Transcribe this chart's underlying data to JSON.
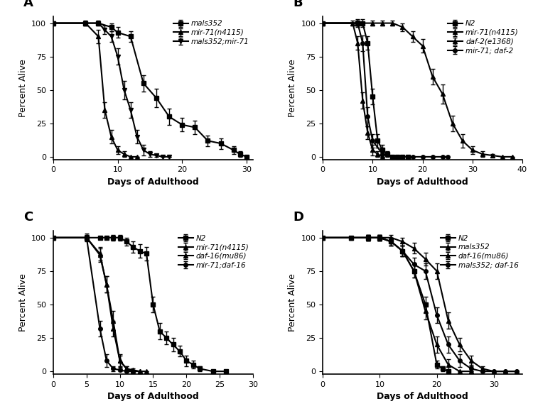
{
  "panel_A": {
    "label": "A",
    "xlim": [
      0,
      31
    ],
    "ylim": [
      -2,
      105
    ],
    "xticks": [
      0,
      10,
      20,
      30
    ],
    "yticks": [
      0,
      25,
      50,
      75,
      100
    ],
    "xlabel": "Days of Adulthood",
    "ylabel": "Percent Alive",
    "series": [
      {
        "label": "mals352",
        "marker": "s",
        "x": [
          0,
          5,
          7,
          9,
          10,
          12,
          14,
          16,
          18,
          20,
          22,
          24,
          26,
          28,
          29,
          30
        ],
        "y": [
          100,
          100,
          100,
          97,
          93,
          90,
          55,
          44,
          30,
          24,
          22,
          12,
          10,
          5,
          2,
          0
        ],
        "yerr": [
          0,
          1,
          1,
          3,
          4,
          4,
          6,
          7,
          6,
          5,
          5,
          4,
          4,
          3,
          2,
          0
        ]
      },
      {
        "label": "mir-71(n4115)",
        "marker": "^",
        "x": [
          0,
          5,
          7,
          8,
          9,
          10,
          11,
          12,
          13
        ],
        "y": [
          100,
          100,
          90,
          35,
          15,
          5,
          2,
          0,
          0
        ],
        "yerr": [
          0,
          2,
          5,
          6,
          5,
          3,
          2,
          0,
          0
        ]
      },
      {
        "label": "mals352;mir-71",
        "marker": "v",
        "x": [
          0,
          5,
          7,
          8,
          9,
          10,
          11,
          12,
          13,
          14,
          15,
          16,
          17,
          18
        ],
        "y": [
          100,
          100,
          100,
          95,
          90,
          75,
          50,
          35,
          15,
          5,
          2,
          1,
          0,
          0
        ],
        "yerr": [
          0,
          1,
          2,
          3,
          4,
          6,
          7,
          6,
          5,
          4,
          2,
          1,
          0,
          0
        ]
      }
    ]
  },
  "panel_B": {
    "label": "B",
    "xlim": [
      0,
      40
    ],
    "ylim": [
      -2,
      105
    ],
    "xticks": [
      0,
      10,
      20,
      30,
      40
    ],
    "yticks": [
      0,
      25,
      50,
      75,
      100
    ],
    "xlabel": "Days of Adulthood",
    "ylabel": "Percent Alive",
    "series": [
      {
        "label": "N2",
        "marker": "s",
        "x": [
          0,
          7,
          8,
          9,
          10,
          11,
          12,
          13,
          14,
          15,
          16,
          17
        ],
        "y": [
          100,
          100,
          100,
          85,
          45,
          12,
          5,
          2,
          0,
          0,
          0,
          0
        ],
        "yerr": [
          0,
          2,
          3,
          5,
          6,
          5,
          4,
          2,
          0,
          0,
          0,
          0
        ]
      },
      {
        "label": "mir-71(n4115)",
        "marker": "^",
        "x": [
          0,
          6,
          7,
          8,
          9,
          10,
          11,
          12
        ],
        "y": [
          100,
          100,
          85,
          42,
          18,
          5,
          2,
          0
        ],
        "yerr": [
          0,
          2,
          5,
          6,
          5,
          4,
          2,
          0
        ]
      },
      {
        "label": "daf-2(e1368)",
        "marker": "^",
        "x": [
          0,
          7,
          10,
          12,
          14,
          16,
          18,
          20,
          22,
          24,
          26,
          28,
          30,
          32,
          34,
          36,
          38
        ],
        "y": [
          100,
          100,
          100,
          100,
          100,
          97,
          90,
          83,
          60,
          47,
          25,
          12,
          5,
          2,
          1,
          0,
          0
        ],
        "yerr": [
          0,
          2,
          2,
          2,
          2,
          3,
          4,
          5,
          6,
          7,
          6,
          5,
          3,
          2,
          1,
          0,
          0
        ]
      },
      {
        "label": "mir-71; daf-2",
        "marker": "o",
        "x": [
          0,
          7,
          8,
          9,
          10,
          12,
          14,
          16,
          18,
          20,
          22,
          24,
          25
        ],
        "y": [
          100,
          100,
          85,
          30,
          12,
          2,
          0,
          0,
          0,
          0,
          0,
          0,
          0
        ],
        "yerr": [
          0,
          3,
          6,
          7,
          5,
          2,
          0,
          0,
          0,
          0,
          0,
          0,
          0
        ]
      }
    ]
  },
  "panel_C": {
    "label": "C",
    "xlim": [
      0,
      30
    ],
    "ylim": [
      -2,
      105
    ],
    "xticks": [
      0,
      5,
      10,
      15,
      20,
      25,
      30
    ],
    "yticks": [
      0,
      25,
      50,
      75,
      100
    ],
    "xlabel": "Days of Adulthood",
    "ylabel": "Percent Alive",
    "series": [
      {
        "label": "N2",
        "marker": "s",
        "x": [
          0,
          5,
          7,
          8,
          9,
          10,
          11,
          12,
          13,
          14,
          15,
          16,
          17,
          18,
          19,
          20,
          21,
          22,
          24,
          26
        ],
        "y": [
          100,
          100,
          100,
          100,
          100,
          100,
          97,
          93,
          90,
          88,
          50,
          30,
          25,
          20,
          15,
          8,
          5,
          2,
          0,
          0
        ],
        "yerr": [
          0,
          1,
          1,
          1,
          2,
          2,
          3,
          4,
          5,
          5,
          6,
          6,
          5,
          5,
          4,
          4,
          3,
          2,
          0,
          0
        ]
      },
      {
        "label": "mir-71(n4115)",
        "marker": "^",
        "x": [
          0,
          5,
          7,
          8,
          9,
          10,
          11,
          12,
          13
        ],
        "y": [
          100,
          100,
          88,
          65,
          32,
          8,
          2,
          0,
          0
        ],
        "yerr": [
          0,
          2,
          5,
          6,
          6,
          4,
          2,
          0,
          0
        ]
      },
      {
        "label": "daf-16(mu86)",
        "marker": "^",
        "x": [
          0,
          5,
          7,
          8,
          9,
          10,
          11,
          12,
          13,
          14
        ],
        "y": [
          100,
          100,
          87,
          65,
          38,
          8,
          2,
          1,
          0,
          0
        ],
        "yerr": [
          0,
          2,
          5,
          6,
          7,
          5,
          2,
          1,
          0,
          0
        ]
      },
      {
        "label": "mir-71;daf-16",
        "marker": "o",
        "x": [
          0,
          5,
          7,
          8,
          9,
          10,
          11,
          12
        ],
        "y": [
          100,
          100,
          32,
          8,
          2,
          1,
          0,
          0
        ],
        "yerr": [
          0,
          3,
          6,
          5,
          2,
          1,
          0,
          0
        ]
      }
    ]
  },
  "panel_D": {
    "label": "D",
    "xlim": [
      0,
      35
    ],
    "ylim": [
      -2,
      105
    ],
    "xticks": [
      0,
      10,
      20,
      30
    ],
    "yticks": [
      0,
      25,
      50,
      75,
      100
    ],
    "xlabel": "Days of Adulthood",
    "ylabel": "Percent Alive",
    "series": [
      {
        "label": "N2",
        "marker": "s",
        "x": [
          0,
          5,
          8,
          10,
          12,
          14,
          16,
          18,
          20,
          21,
          22
        ],
        "y": [
          100,
          100,
          100,
          100,
          97,
          90,
          75,
          50,
          5,
          2,
          0
        ],
        "yerr": [
          0,
          1,
          2,
          2,
          3,
          4,
          5,
          6,
          3,
          2,
          0
        ]
      },
      {
        "label": "mals352",
        "marker": "^",
        "x": [
          0,
          5,
          8,
          10,
          12,
          14,
          16,
          18,
          20,
          22,
          24,
          26,
          28,
          30,
          32,
          34
        ],
        "y": [
          100,
          100,
          100,
          100,
          100,
          97,
          92,
          84,
          75,
          38,
          20,
          8,
          2,
          0,
          0,
          0
        ],
        "yerr": [
          0,
          1,
          2,
          2,
          2,
          3,
          4,
          5,
          6,
          6,
          5,
          4,
          2,
          0,
          0,
          0
        ]
      },
      {
        "label": "daf-16(mu86)",
        "marker": "^",
        "x": [
          0,
          5,
          8,
          10,
          12,
          14,
          16,
          18,
          20,
          22,
          24,
          26
        ],
        "y": [
          100,
          100,
          100,
          100,
          97,
          90,
          75,
          45,
          20,
          5,
          0,
          0
        ],
        "yerr": [
          0,
          1,
          2,
          2,
          3,
          4,
          5,
          6,
          6,
          4,
          0,
          0
        ]
      },
      {
        "label": "mals352; daf-16",
        "marker": "o",
        "x": [
          0,
          5,
          8,
          10,
          12,
          14,
          16,
          18,
          20,
          22,
          24,
          26,
          28,
          30,
          32,
          34
        ],
        "y": [
          100,
          100,
          100,
          100,
          97,
          90,
          80,
          75,
          42,
          20,
          8,
          2,
          0,
          0,
          0,
          0
        ],
        "yerr": [
          0,
          1,
          2,
          2,
          3,
          4,
          5,
          6,
          6,
          6,
          5,
          3,
          0,
          0,
          0,
          0
        ]
      }
    ]
  },
  "line_color": "#000000",
  "font_size_label": 9,
  "font_size_tick": 8,
  "font_size_legend": 7.5,
  "font_size_panel": 13,
  "line_width": 1.5,
  "marker_size": 4,
  "cap_size": 2,
  "elinewidth": 1.0
}
